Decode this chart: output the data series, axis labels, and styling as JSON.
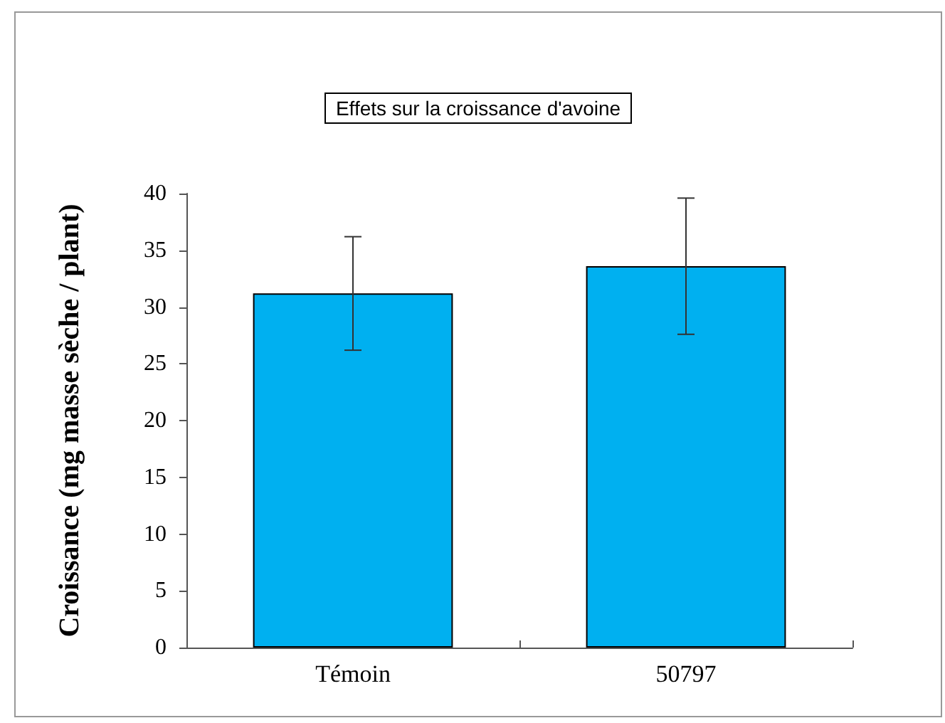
{
  "chart_data": {
    "type": "bar",
    "title": "Effets sur la croissance d'avoine",
    "ylabel": "Croissance (mg masse sèche / plant)",
    "categories": [
      "Témoin",
      "50797"
    ],
    "values": [
      31.2,
      33.6
    ],
    "errors": [
      5,
      6
    ],
    "color": "#00b0f0",
    "ylim": [
      0,
      40
    ],
    "yticks": [
      0,
      5,
      10,
      15,
      20,
      25,
      30,
      35,
      40
    ],
    "grid": false
  }
}
